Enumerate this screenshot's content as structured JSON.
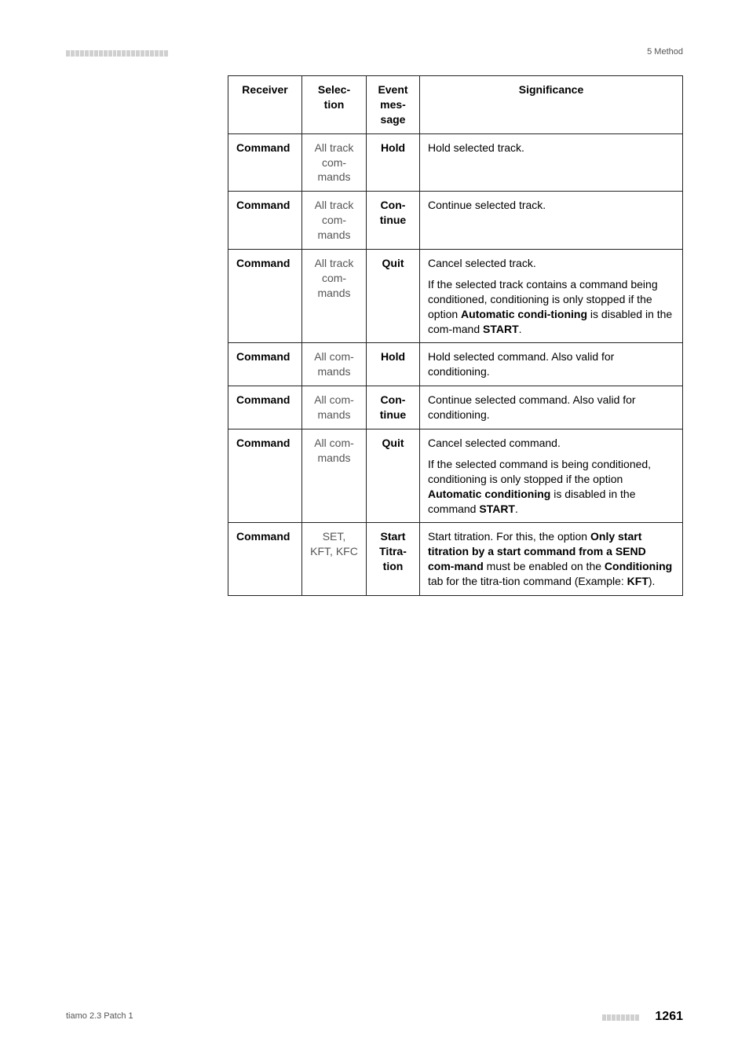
{
  "header": {
    "right_text": "5 Method"
  },
  "table": {
    "columns": {
      "receiver": "Receiver",
      "selection": "Selec-\ntion",
      "event": "Event\nmes-\nsage",
      "significance": "Significance"
    },
    "rows": [
      {
        "receiver": "Command",
        "selection": "All track com-mands",
        "event": "Hold",
        "sig_plain": "Hold selected track."
      },
      {
        "receiver": "Command",
        "selection": "All track com-mands",
        "event": "Con-tinue",
        "sig_plain": "Continue selected track."
      },
      {
        "receiver": "Command",
        "selection": "All track com-mands",
        "event": "Quit",
        "sig_p1": "Cancel selected track.",
        "sig_p2_a": "If the selected track contains a command being conditioned, conditioning is only stopped if the option ",
        "sig_p2_b": "Automatic condi-tioning",
        "sig_p2_c": " is disabled in the com-mand ",
        "sig_p2_d": "START",
        "sig_p2_e": "."
      },
      {
        "receiver": "Command",
        "selection": "All com-mands",
        "event": "Hold",
        "sig_plain": "Hold selected command. Also valid for conditioning."
      },
      {
        "receiver": "Command",
        "selection": "All com-mands",
        "event": "Con-tinue",
        "sig_plain": "Continue selected command. Also valid for conditioning."
      },
      {
        "receiver": "Command",
        "selection": "All com-mands",
        "event": "Quit",
        "sig_p1": "Cancel selected command.",
        "sig_p2_a": "If the selected command is being conditioned, conditioning is only stopped if the option ",
        "sig_p2_b": "Automatic conditioning",
        "sig_p2_c": " is disabled in the command ",
        "sig_p2_d": "START",
        "sig_p2_e": "."
      },
      {
        "receiver": "Command",
        "selection": "SET, KFT, KFC",
        "event": "Start Titra-tion",
        "sig7_a": "Start titration. For this, the option ",
        "sig7_b": "Only start titration by a start command from a SEND com-mand",
        "sig7_c": " must be enabled on the ",
        "sig7_d": "Conditioning",
        "sig7_e": " tab for the titra-tion command (Example: ",
        "sig7_f": "KFT",
        "sig7_g": ")."
      }
    ]
  },
  "footer": {
    "left": "tiamo 2.3 Patch 1",
    "page": "1261"
  }
}
